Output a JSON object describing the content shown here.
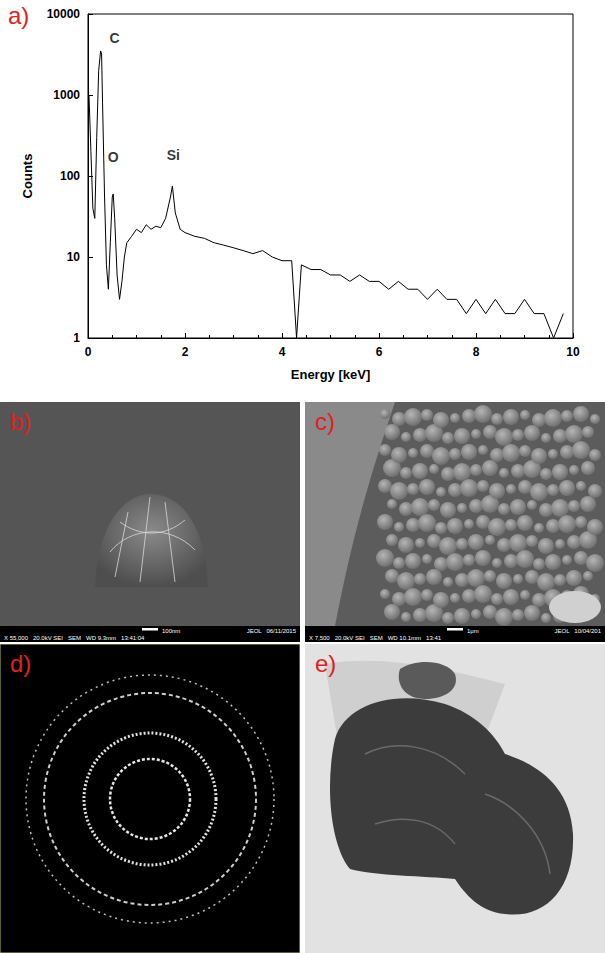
{
  "chart_data": {
    "type": "line",
    "panel_label": "a)",
    "x_label": "Energy [keV]",
    "y_label": "Counts",
    "x": [
      0.02,
      0.06,
      0.1,
      0.14,
      0.18,
      0.22,
      0.26,
      0.28,
      0.3,
      0.34,
      0.38,
      0.42,
      0.46,
      0.5,
      0.52,
      0.55,
      0.6,
      0.65,
      0.7,
      0.75,
      0.8,
      0.9,
      1.0,
      1.1,
      1.2,
      1.3,
      1.4,
      1.5,
      1.6,
      1.7,
      1.74,
      1.8,
      1.9,
      2.0,
      2.2,
      2.4,
      2.6,
      2.8,
      3.0,
      3.2,
      3.4,
      3.6,
      3.8,
      4.0,
      4.2,
      4.3,
      4.4,
      4.6,
      4.8,
      5.0,
      5.2,
      5.4,
      5.6,
      5.8,
      6.0,
      6.2,
      6.4,
      6.6,
      6.8,
      7.0,
      7.2,
      7.4,
      7.6,
      7.8,
      8.0,
      8.2,
      8.4,
      8.6,
      8.8,
      9.0,
      9.2,
      9.4,
      9.6,
      9.8
    ],
    "values": [
      1000,
      200,
      40,
      30,
      300,
      2000,
      3500,
      3200,
      800,
      60,
      8,
      4,
      15,
      55,
      60,
      30,
      6,
      3,
      5,
      10,
      15,
      18,
      22,
      20,
      25,
      22,
      24,
      23,
      30,
      55,
      75,
      35,
      22,
      20,
      18,
      17,
      15,
      14,
      13,
      12,
      11,
      12,
      10,
      9,
      9,
      1,
      8,
      7,
      7,
      6,
      6,
      5,
      6,
      5,
      5,
      4,
      5,
      4,
      4,
      3,
      4,
      3,
      3,
      2,
      3,
      2,
      3,
      2,
      2,
      3,
      2,
      2,
      1,
      2
    ],
    "color": "#000000",
    "xlim": [
      0,
      10
    ],
    "xticks": [
      0,
      2,
      4,
      6,
      8,
      10
    ],
    "ylim": [
      1,
      10000
    ],
    "yticks": [
      1,
      10,
      100,
      1000,
      10000
    ],
    "log": "y",
    "grid": false,
    "annotations": [
      {
        "text": "C",
        "x": 0.55,
        "y": 5000
      },
      {
        "text": "O",
        "x": 0.52,
        "y": 170
      },
      {
        "text": "Si",
        "x": 1.76,
        "y": 180
      }
    ]
  },
  "images": [
    {
      "label": "b)",
      "scale": "100nm",
      "info": "JEOL   06/11/2015",
      "details": "X 55,000   20.0kV SEI   SEM   WD 9.3mm   13:41:04"
    },
    {
      "label": "c)",
      "scale": "1μm",
      "info": "JEOL   10/04/201",
      "details": "X 7,500   20.0kV SEI   SEM   WD 10.1mm   13:41"
    },
    {
      "label": "d)"
    },
    {
      "label": "e)"
    }
  ]
}
